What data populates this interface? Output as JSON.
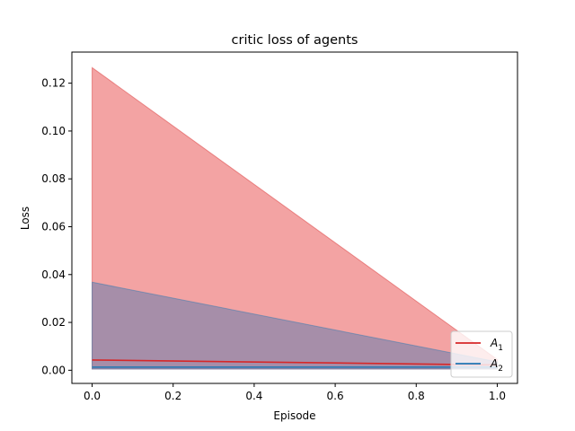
{
  "chart_data": {
    "type": "line",
    "title": "critic loss of agents",
    "xlabel": "Episode",
    "ylabel": "Loss",
    "xlim": [
      -0.05,
      1.05
    ],
    "ylim": [
      -0.0055,
      0.133
    ],
    "xticks": [
      "0.0",
      "0.2",
      "0.4",
      "0.6",
      "0.8",
      "1.0"
    ],
    "yticks": [
      "0.00",
      "0.02",
      "0.04",
      "0.06",
      "0.08",
      "0.10",
      "0.12"
    ],
    "grid": false,
    "legend_position": "lower-right",
    "x": [
      0.0,
      1.0
    ],
    "series": [
      {
        "label_main": "A",
        "label_sub": "1",
        "color": "#d62728",
        "values": [
          0.0043,
          0.0022
        ],
        "band_lower": [
          0.0005,
          0.0005
        ],
        "band_upper": [
          0.1265,
          0.0045
        ]
      },
      {
        "label_main": "A",
        "label_sub": "2",
        "color": "#1f77b4",
        "values": [
          0.0013,
          0.0013
        ],
        "band_lower": [
          0.0005,
          0.0005
        ],
        "band_upper": [
          0.0368,
          0.0035
        ]
      }
    ]
  }
}
